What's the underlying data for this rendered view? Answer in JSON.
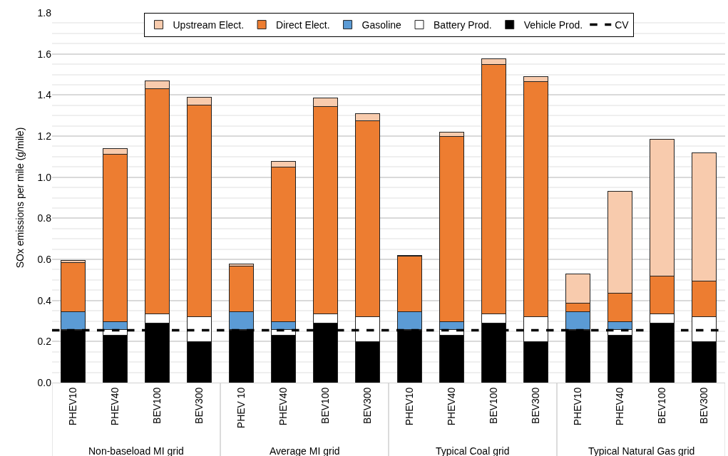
{
  "chart_data": {
    "type": "bar",
    "stacked": true,
    "ylabel": "SOx emissions per mile (g/mile)",
    "categories": [
      "PHEV10",
      "PHEV40",
      "BEV100",
      "BEV300",
      "PHEV 10",
      "PHEV40",
      "BEV100",
      "BEV300",
      "PHEV10",
      "PHEV40",
      "BEV100",
      "BEV300",
      "PHEV10",
      "PHEV40",
      "BEV100",
      "BEV300"
    ],
    "annotations": [
      "Non-baseload MI grid",
      "Average MI grid",
      "Typical Coal grid",
      "Typical Natural Gas grid"
    ],
    "series": [
      {
        "name": "Vehicle Prod.",
        "color": "#000000",
        "values": [
          0.255,
          0.23,
          0.29,
          0.2,
          0.255,
          0.23,
          0.29,
          0.2,
          0.255,
          0.23,
          0.29,
          0.2,
          0.255,
          0.23,
          0.29,
          0.2
        ]
      },
      {
        "name": "Battery Prod.",
        "color": "#ffffff",
        "values": [
          0.005,
          0.03,
          0.045,
          0.12,
          0.005,
          0.03,
          0.045,
          0.12,
          0.005,
          0.03,
          0.045,
          0.12,
          0.005,
          0.03,
          0.045,
          0.12
        ]
      },
      {
        "name": "Gasoline",
        "color": "#5b9bd5",
        "values": [
          0.085,
          0.035,
          0,
          0,
          0.085,
          0.035,
          0,
          0,
          0.085,
          0.035,
          0,
          0,
          0.085,
          0.035,
          0,
          0
        ]
      },
      {
        "name": "Direct Elect.",
        "color": "#ed7d31",
        "values": [
          0.24,
          0.815,
          1.095,
          1.03,
          0.222,
          0.755,
          1.01,
          0.955,
          0.27,
          0.905,
          1.215,
          1.145,
          0.04,
          0.14,
          0.185,
          0.175
        ]
      },
      {
        "name": "Upstream Elect.",
        "color": "#f8cbad",
        "values": [
          0.01,
          0.03,
          0.04,
          0.04,
          0.01,
          0.027,
          0.04,
          0.035,
          0.005,
          0.02,
          0.025,
          0.025,
          0.145,
          0.495,
          0.665,
          0.625
        ]
      }
    ],
    "ref_lines": [
      {
        "axis": "y",
        "value": 0.255,
        "label": "CV",
        "color": "#000000",
        "line_style": "dashed"
      }
    ],
    "ylim": [
      0,
      1.8
    ],
    "yticks": [
      {
        "value": 0,
        "label": "0.0"
      },
      {
        "value": 0.2,
        "label": "0.2"
      },
      {
        "value": 0.4,
        "label": "0.4"
      },
      {
        "value": 0.6,
        "label": "0.6"
      },
      {
        "value": 0.8,
        "label": "0.8"
      },
      {
        "value": 1.0,
        "label": "1.0"
      },
      {
        "value": 1.2,
        "label": "1.2"
      },
      {
        "value": 1.4,
        "label": "1.4"
      },
      {
        "value": 1.6,
        "label": "1.6"
      },
      {
        "value": 1.8,
        "label": "1.8"
      }
    ],
    "grid": "y",
    "legend": "top"
  }
}
